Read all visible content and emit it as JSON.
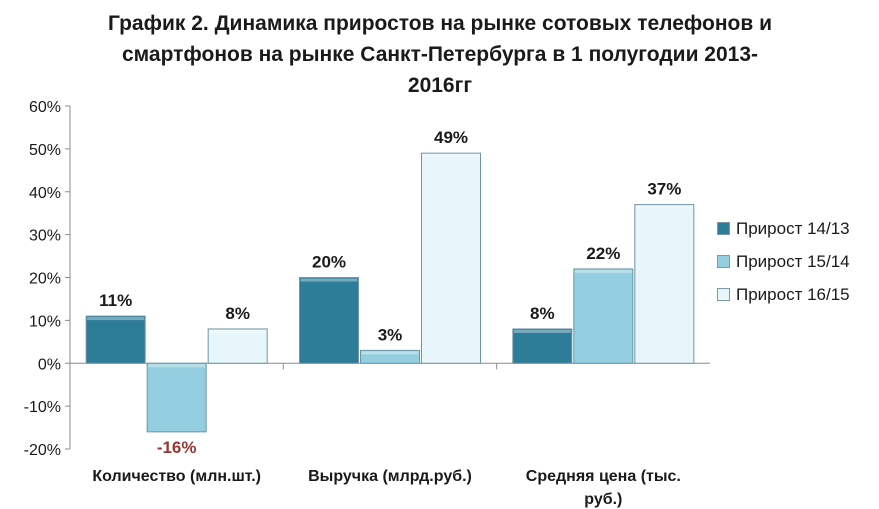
{
  "title_lines": [
    "График 2. Динамика приростов на рынке сотовых телефонов и",
    "смартфонов на рынке Санкт-Петербурга в 1 полугодии 2013-",
    "2016гг"
  ],
  "chart_data": {
    "type": "bar",
    "title": "График 2. Динамика приростов на рынке сотовых телефонов и смартфонов на рынке Санкт-Петербурга в 1 полугодии 2013-2016гг",
    "categories": [
      [
        "Количество (млн.шт.)"
      ],
      [
        "Выручка (млрд.руб.)"
      ],
      [
        "Средняя цена (тыс.",
        "руб.)"
      ]
    ],
    "series": [
      {
        "name": "Прирост 14/13",
        "values": [
          11,
          20,
          8
        ],
        "labels": [
          "11%",
          "20%",
          "8%"
        ],
        "color": "#2e7d98"
      },
      {
        "name": "Прирост 15/14",
        "values": [
          -16,
          3,
          22
        ],
        "labels": [
          "-16%",
          "3%",
          "22%"
        ],
        "color": "#93cfe0"
      },
      {
        "name": "Прирост 16/15",
        "values": [
          8,
          49,
          37
        ],
        "labels": [
          "8%",
          "49%",
          "37%"
        ],
        "color": "#e6f6fb"
      }
    ],
    "ylim": [
      -20,
      60
    ],
    "yticks": [
      -20,
      -10,
      0,
      10,
      20,
      30,
      40,
      50,
      60
    ],
    "ytick_labels": [
      "-20%",
      "-10%",
      "0%",
      "10%",
      "20%",
      "30%",
      "40%",
      "50%",
      "60%"
    ],
    "negative_label_color": "#953735",
    "legend_position": "right",
    "grid": false
  }
}
